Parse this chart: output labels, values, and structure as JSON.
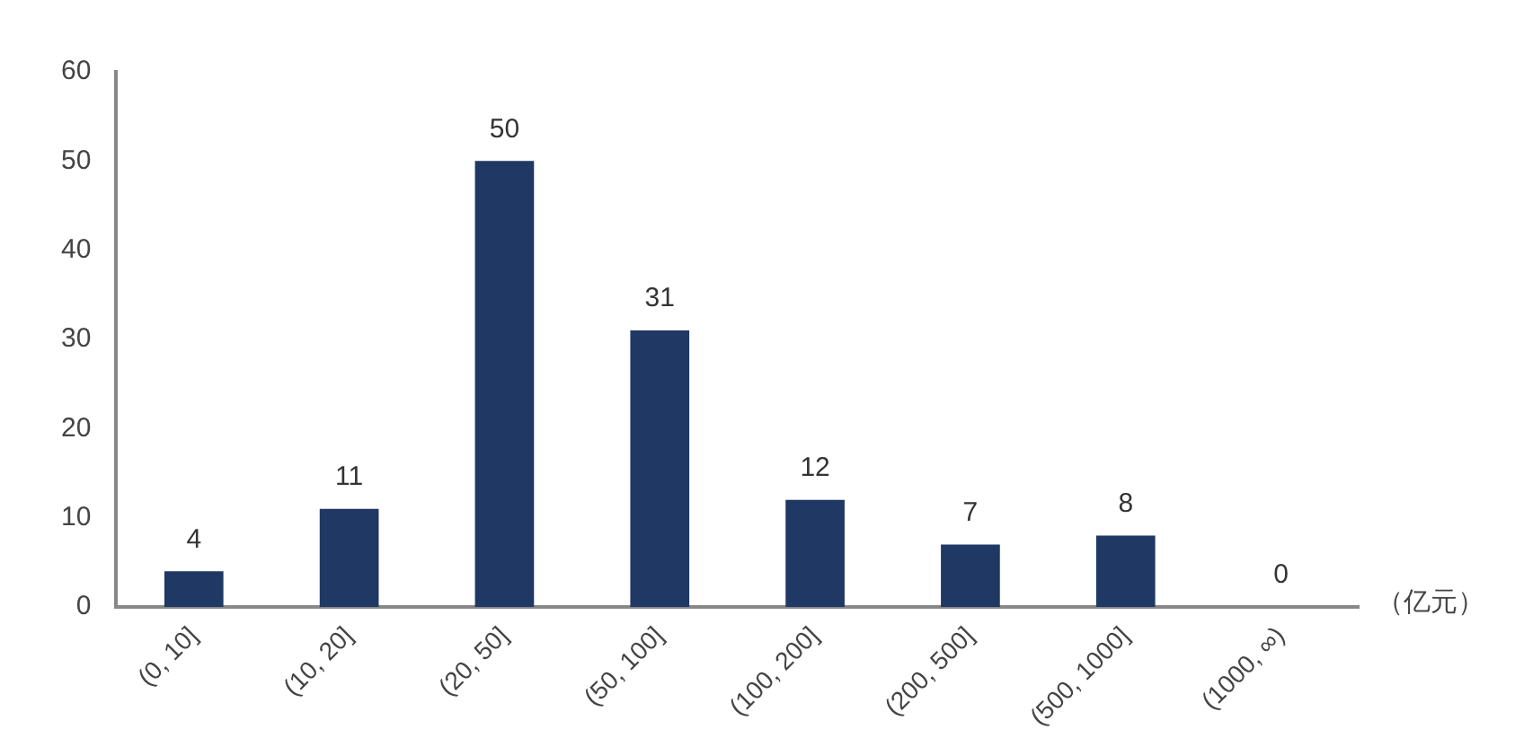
{
  "chart_data": {
    "type": "bar",
    "categories": [
      "(0, 10]",
      "(10, 20]",
      "(20, 50]",
      "(50, 100]",
      "(100, 200]",
      "(200, 500]",
      "(500, 1000]",
      "(1000, ∞)"
    ],
    "values": [
      4,
      11,
      50,
      31,
      12,
      7,
      8,
      0
    ],
    "color": "#1f3864",
    "xlabel": "（亿元）",
    "ylim": [
      0,
      60
    ],
    "yticks": [
      0,
      10,
      20,
      30,
      40,
      50,
      60
    ],
    "grid": false,
    "legend": false,
    "data_labels": true
  }
}
